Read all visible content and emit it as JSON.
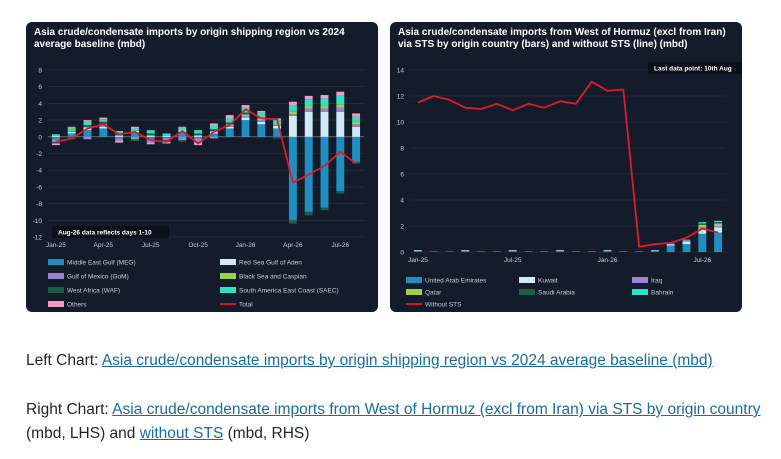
{
  "charts": [
    {
      "title": "Asia crude/condensate imports by origin shipping region vs 2024 average baseline (mbd)",
      "annotation": "Aug-26 data reflects days 1-10"
    },
    {
      "title": "Asia crude/condensate imports from West of Hormuz (excl from Iran) via STS by origin country (bars) and without STS (line) (mbd)",
      "annotation": "Last data point: 10th Aug"
    }
  ],
  "captions": {
    "left_prefix": "Left Chart: ",
    "left_link": "Asia crude/condensate imports by origin shipping region vs 2024 average baseline (mbd)",
    "right_prefix": "Right Chart: ",
    "right_link1": "Asia crude/condensate imports from West of Hormuz (excl from Iran) via STS by origin country",
    "right_mid": " (mbd, LHS) and ",
    "right_link2": "without STS",
    "right_suffix": " (mbd, RHS)"
  },
  "chart_data": [
    {
      "type": "bar",
      "stacked": true,
      "title": "Asia crude/condensate imports by origin shipping region vs 2024 average baseline (mbd)",
      "categories": [
        "Jan-25",
        "Feb-25",
        "Mar-25",
        "Apr-25",
        "May-25",
        "Jun-25",
        "Jul-25",
        "Aug-25",
        "Sep-25",
        "Oct-25",
        "Nov-25",
        "Dec-25",
        "Jan-26",
        "Feb-26",
        "Mar-26",
        "Apr-26",
        "May-26",
        "Jun-26",
        "Jul-26",
        "Aug-26"
      ],
      "xticks": [
        "Jan-25",
        "Apr-25",
        "Jul-25",
        "Oct-25",
        "Jan-26",
        "Apr-26",
        "Jul-26"
      ],
      "ylim": [
        -12,
        8
      ],
      "yticks": [
        -12,
        -10,
        -8,
        -6,
        -4,
        -2,
        0,
        2,
        4,
        6,
        8
      ],
      "legend_position": "bottom",
      "series": [
        {
          "name": "Middle East Gulf (MEG)",
          "color": "#1e8fc0",
          "values": [
            -0.3,
            0.4,
            0.8,
            1.0,
            -0.2,
            0.5,
            -0.4,
            -0.2,
            0.6,
            -0.2,
            0.4,
            1.0,
            2.0,
            1.5,
            1.0,
            -10.0,
            -9.0,
            -8.5,
            -6.5,
            -3.0
          ]
        },
        {
          "name": "Red Sea Gulf of Aden",
          "color": "#cfe9f6",
          "values": [
            0.1,
            0.2,
            0.3,
            0.2,
            0.1,
            0.2,
            0.1,
            0.1,
            0.2,
            0.1,
            0.2,
            0.2,
            0.3,
            0.3,
            0.3,
            2.5,
            3.0,
            3.0,
            3.0,
            1.2
          ]
        },
        {
          "name": "Gulf of Mexico (GoM)",
          "color": "#9b84d8",
          "values": [
            -0.2,
            0.1,
            -0.3,
            0.2,
            -0.3,
            -0.2,
            -0.3,
            -0.2,
            -0.3,
            -0.4,
            -0.2,
            0.1,
            0.2,
            0.2,
            0.1,
            0.2,
            0.4,
            0.4,
            0.5,
            0.3
          ]
        },
        {
          "name": "Black Sea and Caspian",
          "color": "#9bd24a",
          "values": [
            -0.1,
            0.1,
            0.1,
            0.1,
            0.1,
            -0.1,
            0.1,
            0.1,
            -0.1,
            0.1,
            0.1,
            0.2,
            0.2,
            0.2,
            0.1,
            0.3,
            0.3,
            0.3,
            0.4,
            0.3
          ]
        },
        {
          "name": "West Africa (WAF)",
          "color": "#1e5c4a",
          "values": [
            -0.2,
            -0.3,
            0.2,
            0.3,
            0.2,
            -0.2,
            0.2,
            -0.2,
            -0.2,
            0.2,
            0.2,
            0.2,
            0.2,
            0.1,
            -0.2,
            -0.4,
            -0.4,
            -0.3,
            -0.3,
            -0.2
          ]
        },
        {
          "name": "South America East Coast (SAEC)",
          "color": "#2ee0c4",
          "values": [
            0.2,
            0.3,
            0.4,
            0.3,
            0.3,
            0.3,
            0.4,
            0.2,
            0.3,
            0.4,
            0.4,
            0.5,
            0.6,
            0.6,
            0.5,
            0.8,
            0.8,
            0.9,
            1.0,
            0.6
          ]
        },
        {
          "name": "Others",
          "color": "#f49ac2",
          "values": [
            -0.2,
            0.1,
            0.2,
            0.2,
            -0.2,
            0.2,
            -0.2,
            -0.2,
            0.1,
            -0.4,
            0.3,
            0.4,
            0.3,
            0.2,
            0.2,
            0.4,
            0.4,
            0.4,
            0.5,
            0.4
          ]
        },
        {
          "name": "Total",
          "type": "line",
          "color": "#e0192e",
          "values": [
            -0.6,
            -0.2,
            1.0,
            1.5,
            0.3,
            0.6,
            -0.4,
            -0.6,
            0.7,
            -0.8,
            0.6,
            1.4,
            3.3,
            2.2,
            2.1,
            -5.5,
            -4.5,
            -3.5,
            -1.8,
            -3.2
          ]
        }
      ]
    },
    {
      "type": "bar",
      "stacked": true,
      "title": "Asia crude/condensate imports from West of Hormuz (excl from Iran) via STS by origin country (bars) and without STS (line) (mbd)",
      "categories": [
        "Jan-25",
        "Feb-25",
        "Mar-25",
        "Apr-25",
        "May-25",
        "Jun-25",
        "Jul-25",
        "Aug-25",
        "Sep-25",
        "Oct-25",
        "Nov-25",
        "Dec-25",
        "Jan-26",
        "Feb-26",
        "Mar-26",
        "Apr-26",
        "May-26",
        "Jun-26",
        "Jul-26",
        "Aug-26"
      ],
      "xticks": [
        "Jan-25",
        "Jul-25",
        "Jan-26",
        "Jul-26"
      ],
      "ylim": [
        0,
        14
      ],
      "yticks": [
        0,
        2,
        4,
        6,
        8,
        10,
        12,
        14
      ],
      "legend_position": "bottom",
      "series": [
        {
          "name": "United Arab Emirates",
          "color": "#1e8fc0",
          "values": [
            0.1,
            0.05,
            0.05,
            0.1,
            0.05,
            0.05,
            0.1,
            0.05,
            0.05,
            0.1,
            0.05,
            0.05,
            0.1,
            0.05,
            0.05,
            0.1,
            0.5,
            0.6,
            1.4,
            1.5
          ]
        },
        {
          "name": "Kuwait",
          "color": "#cfe9f6",
          "values": [
            0.05,
            0,
            0,
            0.05,
            0,
            0,
            0.05,
            0,
            0,
            0.05,
            0,
            0,
            0.05,
            0,
            0,
            0.05,
            0.1,
            0.2,
            0.4,
            0.4
          ]
        },
        {
          "name": "Iraq",
          "color": "#9b84d8",
          "values": [
            0,
            0,
            0,
            0,
            0,
            0,
            0,
            0,
            0,
            0,
            0,
            0,
            0,
            0,
            0,
            0,
            0.05,
            0.1,
            0.1,
            0.1
          ]
        },
        {
          "name": "Qatar",
          "color": "#9bd24a",
          "values": [
            0,
            0,
            0,
            0,
            0,
            0,
            0,
            0,
            0,
            0,
            0,
            0,
            0,
            0,
            0,
            0,
            0,
            0,
            0.2,
            0.2
          ]
        },
        {
          "name": "Saudi Arabia",
          "color": "#1e5c4a",
          "values": [
            0,
            0,
            0,
            0,
            0,
            0,
            0,
            0,
            0,
            0,
            0,
            0,
            0,
            0,
            0,
            0,
            0,
            0,
            0.1,
            0.1
          ]
        },
        {
          "name": "Bahrain",
          "color": "#2ee0c4",
          "values": [
            0,
            0,
            0,
            0,
            0,
            0,
            0,
            0,
            0,
            0,
            0,
            0,
            0,
            0,
            0,
            0,
            0,
            0.05,
            0.1,
            0.1
          ]
        },
        {
          "name": "Without STS",
          "type": "line",
          "color": "#e0192e",
          "values": [
            11.5,
            12.0,
            11.7,
            11.1,
            11.0,
            11.4,
            10.9,
            11.4,
            11.1,
            11.6,
            11.4,
            13.1,
            12.4,
            12.5,
            0.4,
            0.6,
            0.7,
            1.1,
            1.8,
            1.5
          ]
        }
      ]
    }
  ]
}
